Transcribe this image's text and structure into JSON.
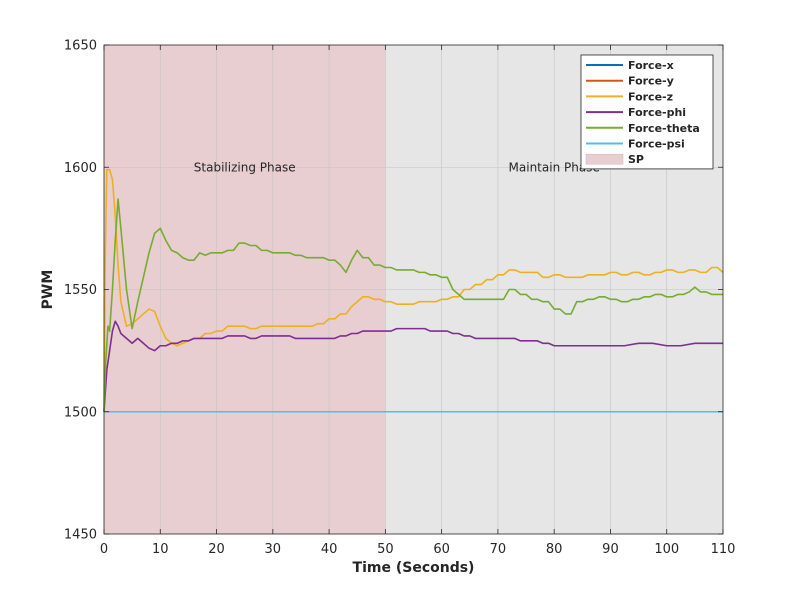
{
  "chart_data": {
    "type": "line",
    "title": "",
    "xlabel": "Time (Seconds)",
    "ylabel": "PWM",
    "xlim": [
      0,
      110
    ],
    "ylim": [
      1450,
      1650
    ],
    "xticks": [
      0,
      10,
      20,
      30,
      40,
      50,
      60,
      70,
      80,
      90,
      100,
      110
    ],
    "yticks": [
      1450,
      1500,
      1550,
      1600,
      1650
    ],
    "grid": true,
    "legend_position": "top-right",
    "regions": [
      {
        "name": "SP",
        "x": [
          0,
          50
        ],
        "color": "#e8cdd1"
      },
      {
        "name": "",
        "x": [
          50,
          110
        ],
        "color": "#e6e6e6"
      }
    ],
    "annotations": [
      {
        "text": "Stabilizing Phase",
        "x": 25,
        "y": 1600
      },
      {
        "text": "Maintain Phase",
        "x": 80,
        "y": 1600
      }
    ],
    "series": [
      {
        "name": "Force-x",
        "color": "#0072bd",
        "x": [
          0,
          110
        ],
        "y": [
          1500,
          1500
        ]
      },
      {
        "name": "Force-y",
        "color": "#d95319",
        "x": [
          0,
          110
        ],
        "y": [
          1500,
          1500
        ]
      },
      {
        "name": "Force-z",
        "color": "#edb120",
        "x": [
          0,
          0.2,
          0.5,
          1,
          1.5,
          2,
          2.5,
          3,
          4,
          5,
          6,
          7,
          8,
          9,
          10,
          11,
          12,
          13,
          14,
          15,
          16,
          18,
          20,
          22,
          24,
          26,
          28,
          30,
          32,
          34,
          36,
          38,
          40,
          42,
          44,
          45,
          46,
          48,
          50,
          52,
          54,
          56,
          58,
          60,
          62,
          64,
          66,
          68,
          70,
          72,
          74,
          76,
          78,
          80,
          82,
          84,
          86,
          88,
          90,
          92,
          94,
          96,
          98,
          100,
          102,
          104,
          106,
          108,
          110
        ],
        "y": [
          1500,
          1560,
          1599,
          1599,
          1595,
          1580,
          1560,
          1545,
          1535,
          1536,
          1538,
          1540,
          1542,
          1541,
          1535,
          1530,
          1528,
          1527,
          1528,
          1529,
          1530,
          1532,
          1533,
          1535,
          1535,
          1534,
          1535,
          1535,
          1535,
          1535,
          1535,
          1536,
          1538,
          1540,
          1543,
          1545,
          1547,
          1546,
          1545,
          1544,
          1544,
          1545,
          1545,
          1546,
          1547,
          1550,
          1552,
          1554,
          1556,
          1558,
          1557,
          1557,
          1555,
          1556,
          1555,
          1555,
          1556,
          1556,
          1557,
          1556,
          1557,
          1556,
          1557,
          1558,
          1557,
          1558,
          1557,
          1559,
          1557
        ]
      },
      {
        "name": "Force-phi",
        "color": "#7e2f8e",
        "x": [
          0,
          0.5,
          1,
          1.5,
          2,
          2.5,
          3,
          4,
          5,
          6,
          7,
          8,
          9,
          10,
          12,
          14,
          16,
          18,
          20,
          22,
          24,
          26,
          28,
          30,
          32,
          34,
          36,
          38,
          40,
          42,
          44,
          46,
          48,
          50,
          52,
          54,
          56,
          58,
          60,
          62,
          64,
          66,
          68,
          70,
          72,
          74,
          76,
          78,
          80,
          85,
          90,
          95,
          100,
          105,
          110
        ],
        "y": [
          1500,
          1517,
          1525,
          1533,
          1537,
          1535,
          1532,
          1530,
          1528,
          1530,
          1528,
          1526,
          1525,
          1527,
          1528,
          1529,
          1530,
          1530,
          1530,
          1531,
          1531,
          1530,
          1531,
          1531,
          1531,
          1530,
          1530,
          1530,
          1530,
          1531,
          1532,
          1533,
          1533,
          1533,
          1534,
          1534,
          1534,
          1533,
          1533,
          1532,
          1531,
          1530,
          1530,
          1530,
          1530,
          1529,
          1529,
          1528,
          1527,
          1527,
          1527,
          1528,
          1527,
          1528,
          1528
        ]
      },
      {
        "name": "Force-theta",
        "color": "#77ac30",
        "x": [
          0,
          0.3,
          0.7,
          1,
          1.5,
          2,
          2.5,
          3,
          4,
          5,
          6,
          7,
          8,
          9,
          10,
          11,
          12,
          13,
          14,
          15,
          16,
          17,
          18,
          19,
          20,
          22,
          24,
          26,
          28,
          30,
          32,
          34,
          36,
          38,
          40,
          42,
          43,
          44,
          45,
          46,
          48,
          50,
          52,
          54,
          56,
          58,
          60,
          62,
          63,
          64,
          66,
          68,
          70,
          72,
          74,
          76,
          78,
          80,
          82,
          84,
          86,
          88,
          90,
          92,
          94,
          96,
          98,
          100,
          102,
          104,
          105,
          106,
          108,
          110
        ],
        "y": [
          1500,
          1520,
          1535,
          1533,
          1550,
          1570,
          1587,
          1575,
          1550,
          1534,
          1545,
          1555,
          1565,
          1573,
          1575,
          1570,
          1566,
          1565,
          1563,
          1562,
          1562,
          1565,
          1564,
          1565,
          1565,
          1566,
          1569,
          1568,
          1566,
          1565,
          1565,
          1564,
          1563,
          1563,
          1562,
          1560,
          1557,
          1562,
          1566,
          1563,
          1560,
          1559,
          1558,
          1558,
          1557,
          1556,
          1555,
          1550,
          1548,
          1546,
          1546,
          1546,
          1546,
          1550,
          1548,
          1546,
          1545,
          1542,
          1540,
          1545,
          1546,
          1547,
          1546,
          1545,
          1546,
          1547,
          1548,
          1547,
          1548,
          1549,
          1551,
          1549,
          1548,
          1548
        ]
      },
      {
        "name": "Force-psi",
        "color": "#4dbeee",
        "x": [
          0,
          110
        ],
        "y": [
          1500,
          1500
        ]
      }
    ]
  }
}
